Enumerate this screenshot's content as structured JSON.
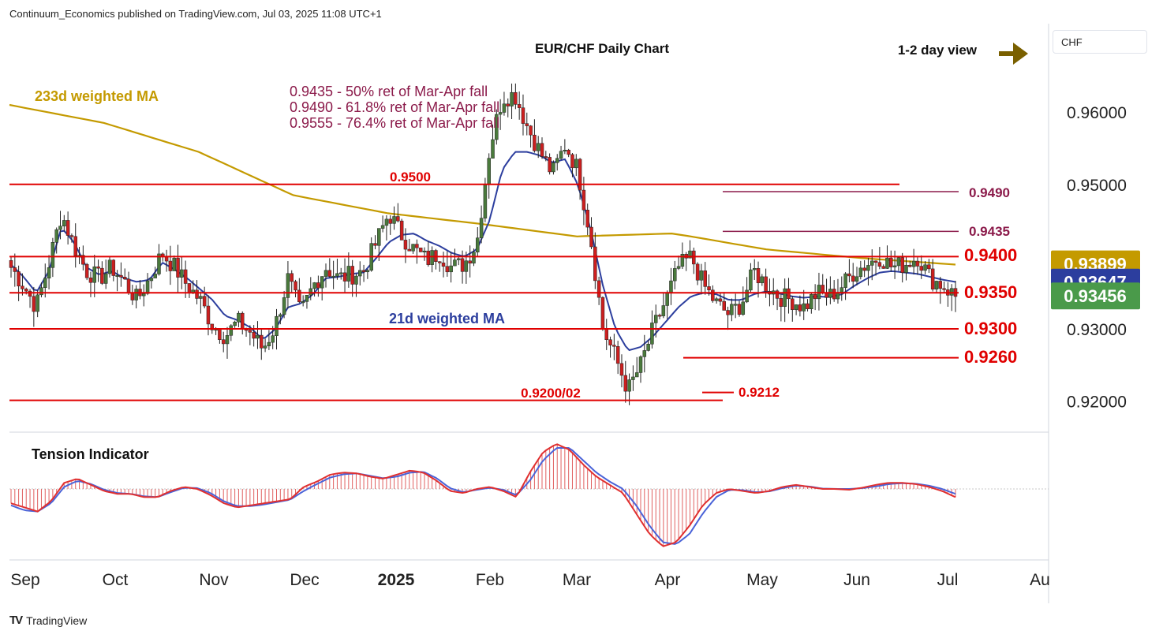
{
  "header": {
    "text": "Continuum_Economics published on TradingView.com, Jul 03, 2025 11:08 UTC+1"
  },
  "currency_box": "CHF",
  "brand": {
    "name": "TradingView",
    "logo": "TV"
  },
  "colors": {
    "red": "#e00000",
    "maroon": "#8b1a4a",
    "gold": "#c49a00",
    "blue": "#2c3e9e",
    "candle_up": "#4a7a3c",
    "candle_down": "#cc1f1f",
    "olive_arrow": "#7a6000"
  },
  "chart_data": {
    "type": "candlestick",
    "title": "EUR/CHF Daily Chart",
    "view_label": "1-2 day view",
    "currency": "CHF",
    "y_axis": {
      "ticks": [
        "0.96000",
        "0.95000",
        "0.93000",
        "0.92000"
      ],
      "range": [
        0.9145,
        0.9695
      ]
    },
    "x_axis": {
      "ticks": [
        "Sep",
        "Oct",
        "Nov",
        "Dec",
        "2025",
        "Feb",
        "Mar",
        "Apr",
        "May",
        "Jun",
        "Jul",
        "Au"
      ]
    },
    "price_badges": [
      {
        "label": "0.93899",
        "value": 0.93899,
        "color": "#c49a00"
      },
      {
        "label": "0.93647",
        "value": 0.93647,
        "color": "#2c3e9e"
      },
      {
        "label": "0.93456",
        "value": 0.93456,
        "color": "#4a9a4a"
      }
    ],
    "levels": [
      {
        "label": "0.9500",
        "value": 0.95,
        "label_pos": "middle"
      },
      {
        "label": "0.9400",
        "value": 0.94,
        "label_pos": "right"
      },
      {
        "label": "0.9350",
        "value": 0.935,
        "label_pos": "right"
      },
      {
        "label": "0.9300",
        "value": 0.93,
        "label_pos": "right"
      },
      {
        "label": "0.9260",
        "value": 0.926,
        "label_pos": "right"
      },
      {
        "label": "0.9200/02",
        "value": 0.9201,
        "label_pos": "middle"
      },
      {
        "label": "0.9212",
        "value": 0.9212,
        "label_pos": "right"
      },
      {
        "label": "0.9490",
        "value": 0.949,
        "label_pos": "right"
      },
      {
        "label": "0.9435",
        "value": 0.9435,
        "label_pos": "right"
      }
    ],
    "annotations": [
      "0.9435 - 50% ret of Mar-Apr fall",
      "0.9490 - 61.8% ret of Mar-Apr fall",
      "0.9555 - 76.4% ret of Mar-Apr fall"
    ],
    "ma_labels": {
      "ma233": "233d weighted MA",
      "ma21": "21d weighted MA"
    },
    "indicator": {
      "name": "Tension Indicator"
    },
    "price_path": [
      [
        0.9385,
        0.9389
      ],
      [
        0.936,
        0.9372
      ],
      [
        0.933,
        0.935
      ],
      [
        0.939,
        0.938
      ],
      [
        0.946,
        0.944
      ],
      [
        0.9415,
        0.942
      ],
      [
        0.938,
        0.9385
      ],
      [
        0.937,
        0.9375
      ],
      [
        0.9385,
        0.938
      ],
      [
        0.9365,
        0.937
      ],
      [
        0.934,
        0.9365
      ],
      [
        0.937,
        0.9368
      ],
      [
        0.9405,
        0.9392
      ],
      [
        0.9385,
        0.9382
      ],
      [
        0.936,
        0.937
      ],
      [
        0.934,
        0.9355
      ],
      [
        0.9305,
        0.934
      ],
      [
        0.929,
        0.9318
      ],
      [
        0.931,
        0.9312
      ],
      [
        0.9295,
        0.9302
      ],
      [
        0.9272,
        0.9285
      ],
      [
        0.9305,
        0.93
      ],
      [
        0.937,
        0.933
      ],
      [
        0.932,
        0.9335
      ],
      [
        0.936,
        0.9348
      ],
      [
        0.9385,
        0.937
      ],
      [
        0.937,
        0.9372
      ],
      [
        0.9375,
        0.9376
      ],
      [
        0.938,
        0.9378
      ],
      [
        0.942,
        0.9398
      ],
      [
        0.946,
        0.942
      ],
      [
        0.943,
        0.943
      ],
      [
        0.941,
        0.9432
      ],
      [
        0.9395,
        0.9422
      ],
      [
        0.9405,
        0.9415
      ],
      [
        0.9385,
        0.9405
      ],
      [
        0.939,
        0.94
      ],
      [
        0.942,
        0.941
      ],
      [
        0.955,
        0.945
      ],
      [
        0.962,
        0.952
      ],
      [
        0.9625,
        0.9545
      ],
      [
        0.958,
        0.9545
      ],
      [
        0.9545,
        0.954
      ],
      [
        0.9515,
        0.953
      ],
      [
        0.9555,
        0.9535
      ],
      [
        0.952,
        0.95
      ],
      [
        0.943,
        0.944
      ],
      [
        0.93,
        0.936
      ],
      [
        0.926,
        0.93
      ],
      [
        0.9215,
        0.927
      ],
      [
        0.925,
        0.9275
      ],
      [
        0.93,
        0.929
      ],
      [
        0.934,
        0.931
      ],
      [
        0.9385,
        0.933
      ],
      [
        0.94,
        0.9345
      ],
      [
        0.936,
        0.935
      ],
      [
        0.9335,
        0.9348
      ],
      [
        0.932,
        0.934
      ],
      [
        0.9335,
        0.934
      ],
      [
        0.938,
        0.9348
      ],
      [
        0.936,
        0.9352
      ],
      [
        0.9345,
        0.9349
      ],
      [
        0.934,
        0.9345
      ],
      [
        0.933,
        0.9343
      ],
      [
        0.935,
        0.9345
      ],
      [
        0.9345,
        0.9344
      ],
      [
        0.936,
        0.9348
      ],
      [
        0.938,
        0.936
      ],
      [
        0.939,
        0.937
      ],
      [
        0.94,
        0.9378
      ],
      [
        0.9385,
        0.938
      ],
      [
        0.939,
        0.9378
      ],
      [
        0.94,
        0.9376
      ],
      [
        0.937,
        0.9372
      ],
      [
        0.936,
        0.9368
      ],
      [
        0.9345,
        0.9365
      ]
    ],
    "tension_path": [
      [
        -0.35,
        -0.4
      ],
      [
        -0.45,
        -0.52
      ],
      [
        -0.55,
        -0.55
      ],
      [
        -0.3,
        -0.35
      ],
      [
        0.15,
        0.05
      ],
      [
        0.25,
        0.2
      ],
      [
        0.1,
        0.12
      ],
      [
        -0.05,
        -0.02
      ],
      [
        -0.12,
        -0.1
      ],
      [
        -0.12,
        -0.12
      ],
      [
        -0.2,
        -0.18
      ],
      [
        -0.2,
        -0.2
      ],
      [
        -0.05,
        -0.08
      ],
      [
        0.05,
        0.03
      ],
      [
        0.0,
        0.02
      ],
      [
        -0.15,
        -0.1
      ],
      [
        -0.35,
        -0.3
      ],
      [
        -0.45,
        -0.42
      ],
      [
        -0.4,
        -0.42
      ],
      [
        -0.35,
        -0.38
      ],
      [
        -0.3,
        -0.32
      ],
      [
        -0.25,
        -0.26
      ],
      [
        0.05,
        -0.05
      ],
      [
        0.18,
        0.12
      ],
      [
        0.35,
        0.28
      ],
      [
        0.4,
        0.36
      ],
      [
        0.38,
        0.38
      ],
      [
        0.3,
        0.32
      ],
      [
        0.25,
        0.26
      ],
      [
        0.35,
        0.3
      ],
      [
        0.45,
        0.4
      ],
      [
        0.4,
        0.42
      ],
      [
        0.2,
        0.26
      ],
      [
        -0.05,
        0.02
      ],
      [
        -0.1,
        -0.08
      ],
      [
        0.0,
        -0.02
      ],
      [
        0.05,
        0.03
      ],
      [
        -0.05,
        -0.02
      ],
      [
        -0.2,
        -0.15
      ],
      [
        0.4,
        0.2
      ],
      [
        0.9,
        0.7
      ],
      [
        1.1,
        1.0
      ],
      [
        0.95,
        1.0
      ],
      [
        0.6,
        0.7
      ],
      [
        0.3,
        0.4
      ],
      [
        0.1,
        0.18
      ],
      [
        -0.1,
        0.0
      ],
      [
        -0.6,
        -0.4
      ],
      [
        -1.1,
        -0.9
      ],
      [
        -1.4,
        -1.3
      ],
      [
        -1.3,
        -1.35
      ],
      [
        -0.9,
        -1.1
      ],
      [
        -0.4,
        -0.6
      ],
      [
        -0.1,
        -0.2
      ],
      [
        0.0,
        -0.02
      ],
      [
        -0.05,
        -0.03
      ],
      [
        -0.1,
        -0.08
      ],
      [
        -0.05,
        -0.06
      ],
      [
        0.05,
        0.02
      ],
      [
        0.1,
        0.08
      ],
      [
        0.05,
        0.06
      ],
      [
        0.0,
        0.01
      ],
      [
        0.0,
        0.0
      ],
      [
        -0.02,
        0.0
      ],
      [
        0.03,
        0.02
      ],
      [
        0.1,
        0.06
      ],
      [
        0.15,
        0.12
      ],
      [
        0.15,
        0.14
      ],
      [
        0.12,
        0.13
      ],
      [
        0.05,
        0.08
      ],
      [
        -0.05,
        0.0
      ],
      [
        -0.2,
        -0.12
      ]
    ]
  }
}
